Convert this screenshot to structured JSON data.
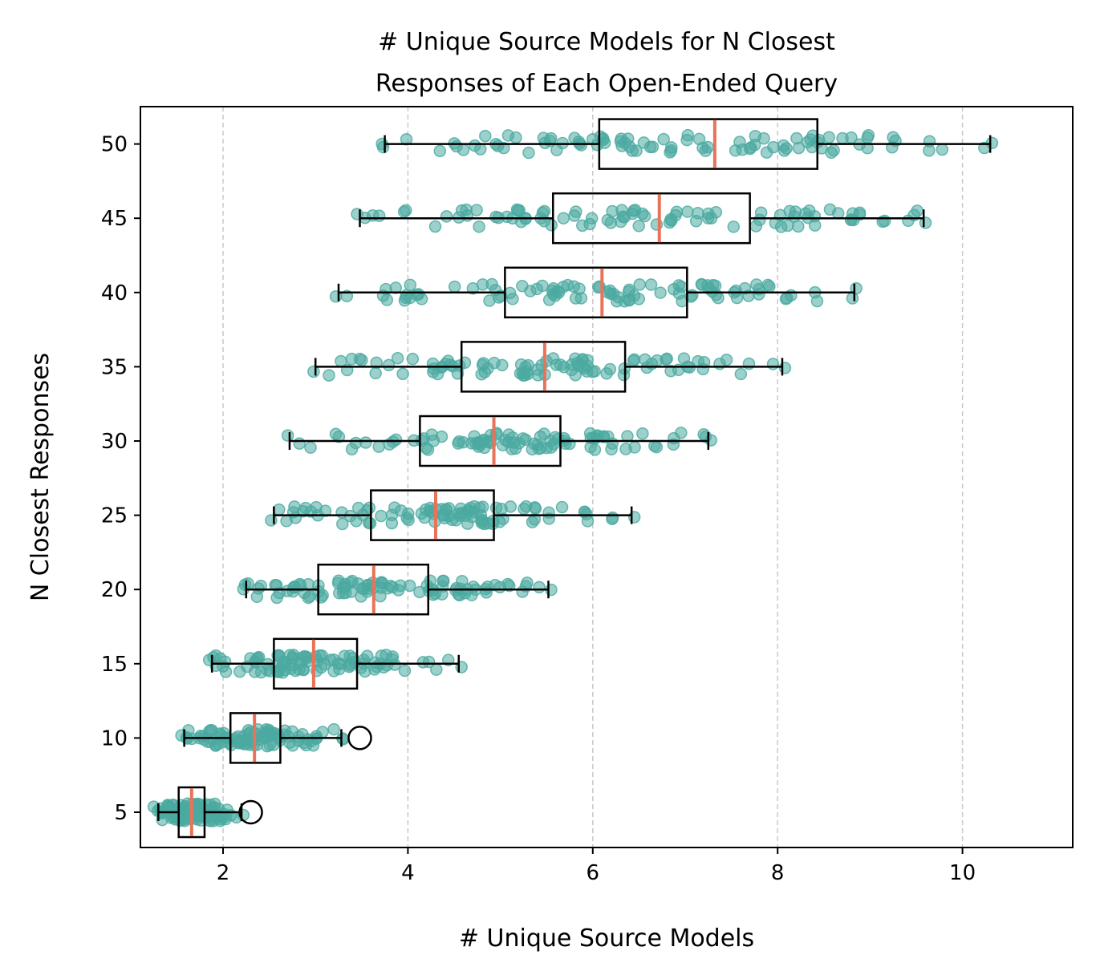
{
  "chart_data": {
    "type": "boxplot",
    "title_line1": "# Unique Source Models for N Closest",
    "title_line2": "Responses of Each Open-Ended Query",
    "xlabel": "# Unique Source Models",
    "ylabel": "N Closest Responses",
    "xlim": [
      1.1,
      11.2
    ],
    "x_ticks": [
      2,
      4,
      6,
      8,
      10
    ],
    "x_tick_labels": [
      "2",
      "4",
      "6",
      "8",
      "10"
    ],
    "y_ticks": [
      5,
      10,
      15,
      20,
      25,
      30,
      35,
      40,
      45,
      50
    ],
    "y_tick_labels": [
      "5",
      "10",
      "15",
      "20",
      "25",
      "30",
      "35",
      "40",
      "45",
      "50"
    ],
    "grid": "x-dashed",
    "colors": {
      "points": "#4aa9a0",
      "median": "#e8735a",
      "box": "#000000",
      "grid": "#c8c8c8"
    },
    "boxes": [
      {
        "n": 5,
        "whisker_low": 1.3,
        "q1": 1.52,
        "median": 1.66,
        "q3": 1.8,
        "whisker_high": 2.2,
        "outliers": [
          2.3
        ],
        "points_range": [
          1.25,
          2.22
        ]
      },
      {
        "n": 10,
        "whisker_low": 1.58,
        "q1": 2.08,
        "median": 2.34,
        "q3": 2.62,
        "whisker_high": 3.28,
        "outliers": [
          3.48
        ],
        "points_range": [
          1.55,
          3.3
        ]
      },
      {
        "n": 15,
        "whisker_low": 1.88,
        "q1": 2.55,
        "median": 2.98,
        "q3": 3.45,
        "whisker_high": 4.55,
        "outliers": [],
        "points_range": [
          1.85,
          4.58
        ]
      },
      {
        "n": 20,
        "whisker_low": 2.25,
        "q1": 3.03,
        "median": 3.63,
        "q3": 4.22,
        "whisker_high": 5.52,
        "outliers": [],
        "points_range": [
          2.22,
          5.55
        ]
      },
      {
        "n": 25,
        "whisker_low": 2.55,
        "q1": 3.6,
        "median": 4.3,
        "q3": 4.93,
        "whisker_high": 6.42,
        "outliers": [],
        "points_range": [
          2.52,
          6.45
        ]
      },
      {
        "n": 30,
        "whisker_low": 2.72,
        "q1": 4.13,
        "median": 4.93,
        "q3": 5.65,
        "whisker_high": 7.25,
        "outliers": [],
        "points_range": [
          2.7,
          7.28
        ]
      },
      {
        "n": 35,
        "whisker_low": 3.0,
        "q1": 4.58,
        "median": 5.48,
        "q3": 6.35,
        "whisker_high": 8.05,
        "outliers": [],
        "points_range": [
          2.98,
          8.08
        ]
      },
      {
        "n": 40,
        "whisker_low": 3.25,
        "q1": 5.05,
        "median": 6.1,
        "q3": 7.02,
        "whisker_high": 8.83,
        "outliers": [],
        "points_range": [
          3.22,
          8.85
        ]
      },
      {
        "n": 45,
        "whisker_low": 3.48,
        "q1": 5.57,
        "median": 6.72,
        "q3": 7.7,
        "whisker_high": 9.58,
        "outliers": [],
        "points_range": [
          3.45,
          9.6
        ]
      },
      {
        "n": 50,
        "whisker_low": 3.75,
        "q1": 6.07,
        "median": 7.32,
        "q3": 8.43,
        "whisker_high": 10.3,
        "outliers": [],
        "points_range": [
          3.72,
          10.32
        ]
      }
    ]
  }
}
